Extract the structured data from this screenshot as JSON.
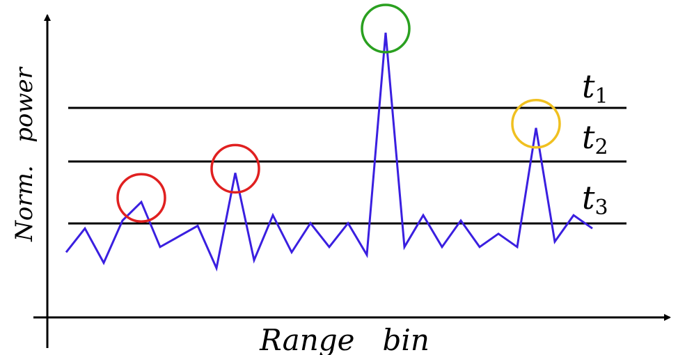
{
  "axes": {
    "x_label": "Range   bin",
    "y_label": "Norm.   power"
  },
  "thresholds": [
    {
      "name": "t",
      "sub": "1"
    },
    {
      "name": "t",
      "sub": "2"
    },
    {
      "name": "t",
      "sub": "3"
    }
  ],
  "chart_data": {
    "type": "line",
    "title": "",
    "xlabel": "Range   bin",
    "ylabel": "Norm.   power",
    "ylim": [
      0,
      100
    ],
    "thresholds": [
      {
        "label": "t1",
        "y": 74
      },
      {
        "label": "t2",
        "y": 56
      },
      {
        "label": "t3",
        "y": 33
      }
    ],
    "series": [
      {
        "color": "#3a1fe0",
        "points": [
          [
            1,
            17
          ],
          [
            2,
            26
          ],
          [
            3,
            13
          ],
          [
            4,
            29
          ],
          [
            5,
            36
          ],
          [
            6,
            19
          ],
          [
            7,
            23
          ],
          [
            8,
            27
          ],
          [
            9,
            11
          ],
          [
            10,
            47
          ],
          [
            11,
            14
          ],
          [
            12,
            31
          ],
          [
            13,
            17
          ],
          [
            14,
            28
          ],
          [
            15,
            19
          ],
          [
            16,
            28
          ],
          [
            17,
            16
          ],
          [
            18,
            100
          ],
          [
            19,
            19
          ],
          [
            20,
            31
          ],
          [
            21,
            19
          ],
          [
            22,
            29
          ],
          [
            23,
            19
          ],
          [
            24,
            24
          ],
          [
            25,
            19
          ],
          [
            26,
            64
          ],
          [
            27,
            21
          ],
          [
            28,
            31
          ],
          [
            29,
            26
          ]
        ]
      }
    ],
    "markers": [
      {
        "x": 5,
        "y": 36,
        "color": "#e02020"
      },
      {
        "x": 10,
        "y": 47,
        "color": "#e02020"
      },
      {
        "x": 18,
        "y": 100,
        "color": "#2aa020"
      },
      {
        "x": 26,
        "y": 64,
        "color": "#f0c020"
      }
    ]
  }
}
